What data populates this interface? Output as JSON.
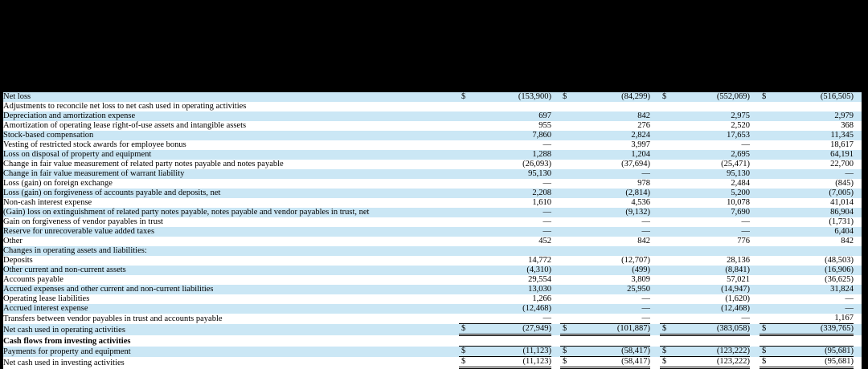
{
  "table": {
    "currency_symbol": "$",
    "shade_color": "#cbe7f5",
    "num_value_columns": 4,
    "rows": [
      {
        "label": "Net loss",
        "indent": 1,
        "bold": false,
        "dollar": true,
        "rule": "none",
        "values": [
          "(153,900)",
          "(84,299)",
          "(552,069)",
          "(516,505)"
        ]
      },
      {
        "label": "Adjustments to reconcile net loss to net cash used in operating activities",
        "indent": 1,
        "bold": false,
        "dollar": false,
        "rule": "none",
        "values": [
          "",
          "",
          "",
          ""
        ]
      },
      {
        "label": "Depreciation and amortization expense",
        "indent": 2,
        "bold": false,
        "dollar": false,
        "rule": "none",
        "values": [
          "697",
          "842",
          "2,975",
          "2,979"
        ]
      },
      {
        "label": "Amortization of operating lease right-of-use assets and intangible assets",
        "indent": 2,
        "bold": false,
        "dollar": false,
        "rule": "none",
        "values": [
          "955",
          "276",
          "2,520",
          "368"
        ]
      },
      {
        "label": "Stock-based compensation",
        "indent": 2,
        "bold": false,
        "dollar": false,
        "rule": "none",
        "values": [
          "7,860",
          "2,824",
          "17,653",
          "11,345"
        ]
      },
      {
        "label": "Vesting of restricted stock awards for employee bonus",
        "indent": 2,
        "bold": false,
        "dollar": false,
        "rule": "none",
        "values": [
          "—",
          "3,997",
          "—",
          "18,617"
        ]
      },
      {
        "label": "Loss on disposal of property and equipment",
        "indent": 2,
        "bold": false,
        "dollar": false,
        "rule": "none",
        "values": [
          "1,288",
          "1,204",
          "2,695",
          "64,191"
        ]
      },
      {
        "label": "Change in fair value measurement of related party notes payable and notes payable",
        "indent": 2,
        "bold": false,
        "dollar": false,
        "rule": "none",
        "values": [
          "(26,093)",
          "(37,694)",
          "(25,471)",
          "22,700"
        ]
      },
      {
        "label": "Change in fair value measurement of warrant liability",
        "indent": 2,
        "bold": false,
        "dollar": false,
        "rule": "none",
        "values": [
          "95,130",
          "—",
          "95,130",
          "—"
        ]
      },
      {
        "label": "Loss (gain) on foreign exchange",
        "indent": 2,
        "bold": false,
        "dollar": false,
        "rule": "none",
        "values": [
          "—",
          "978",
          "2,484",
          "(845)"
        ]
      },
      {
        "label": "Loss (gain) on forgiveness of accounts payable and deposits, net",
        "indent": 2,
        "bold": false,
        "dollar": false,
        "rule": "none",
        "values": [
          "2,208",
          "(2,814)",
          "5,200",
          "(7,005)"
        ]
      },
      {
        "label": "Non-cash interest expense",
        "indent": 2,
        "bold": false,
        "dollar": false,
        "rule": "none",
        "values": [
          "1,610",
          "4,536",
          "10,078",
          "41,014"
        ]
      },
      {
        "label": "(Gain) loss on extinguishment of related party notes payable, notes payable and vendor payables in trust, net",
        "indent": 2,
        "bold": false,
        "dollar": false,
        "rule": "none",
        "values": [
          "—",
          "(9,132)",
          "7,690",
          "86,904"
        ]
      },
      {
        "label": "Gain on forgiveness of vendor payables in trust",
        "indent": 2,
        "bold": false,
        "dollar": false,
        "rule": "none",
        "values": [
          "—",
          "—",
          "—",
          "(1,731)"
        ]
      },
      {
        "label": "Reserve for unrecoverable value added taxes",
        "indent": 2,
        "bold": false,
        "dollar": false,
        "rule": "none",
        "values": [
          "—",
          "—",
          "—",
          "6,404"
        ]
      },
      {
        "label": "Other",
        "indent": 2,
        "bold": false,
        "dollar": false,
        "rule": "none",
        "values": [
          "452",
          "842",
          "776",
          "842"
        ]
      },
      {
        "label": "Changes in operating assets and liabilities:",
        "indent": 1,
        "bold": false,
        "dollar": false,
        "rule": "none",
        "values": [
          "",
          "",
          "",
          ""
        ]
      },
      {
        "label": "Deposits",
        "indent": 2,
        "bold": false,
        "dollar": false,
        "rule": "none",
        "values": [
          "14,772",
          "(12,707)",
          "28,136",
          "(48,503)"
        ]
      },
      {
        "label": "Other current and non-current assets",
        "indent": 2,
        "bold": false,
        "dollar": false,
        "rule": "none",
        "values": [
          "(4,310)",
          "(499)",
          "(8,841)",
          "(16,906)"
        ]
      },
      {
        "label": "Accounts payable",
        "indent": 2,
        "bold": false,
        "dollar": false,
        "rule": "none",
        "values": [
          "29,554",
          "3,809",
          "57,021",
          "(36,625)"
        ]
      },
      {
        "label": "Accrued expenses and other current and non-current liabilities",
        "indent": 2,
        "bold": false,
        "dollar": false,
        "rule": "none",
        "values": [
          "13,030",
          "25,950",
          "(14,947)",
          "31,824"
        ]
      },
      {
        "label": "Operating lease liabilities",
        "indent": 2,
        "bold": false,
        "dollar": false,
        "rule": "none",
        "values": [
          "1,266",
          "—",
          "(1,620)",
          "—"
        ]
      },
      {
        "label": "Accrued interest expense",
        "indent": 2,
        "bold": false,
        "dollar": false,
        "rule": "none",
        "values": [
          "(12,468)",
          "—",
          "(12,468)",
          "—"
        ]
      },
      {
        "label": "Transfers between vendor payables in trust and accounts payable",
        "indent": 2,
        "bold": false,
        "dollar": false,
        "rule": "none",
        "values": [
          "—",
          "—",
          "—",
          "1,167"
        ]
      },
      {
        "label": "Net cash used in operating activities",
        "indent": 3,
        "bold": false,
        "dollar": true,
        "rule": "top-double",
        "values": [
          "(27,949)",
          "(101,887)",
          "(383,058)",
          "(339,765)"
        ]
      },
      {
        "label": "Cash flows from investing activities",
        "indent": 0,
        "bold": true,
        "dollar": false,
        "rule": "none",
        "values": [
          "",
          "",
          "",
          ""
        ]
      },
      {
        "label": "Payments for property and equipment",
        "indent": 1,
        "bold": false,
        "dollar": true,
        "rule": "top-bottom",
        "values": [
          "(11,123)",
          "(58,417)",
          "(123,222)",
          "(95,681)"
        ]
      },
      {
        "label": "Net cash used in investing activities",
        "indent": 3,
        "bold": false,
        "dollar": true,
        "rule": "top-double",
        "values": [
          "(11,123)",
          "(58,417)",
          "(123,222)",
          "(95,681)"
        ]
      }
    ]
  }
}
